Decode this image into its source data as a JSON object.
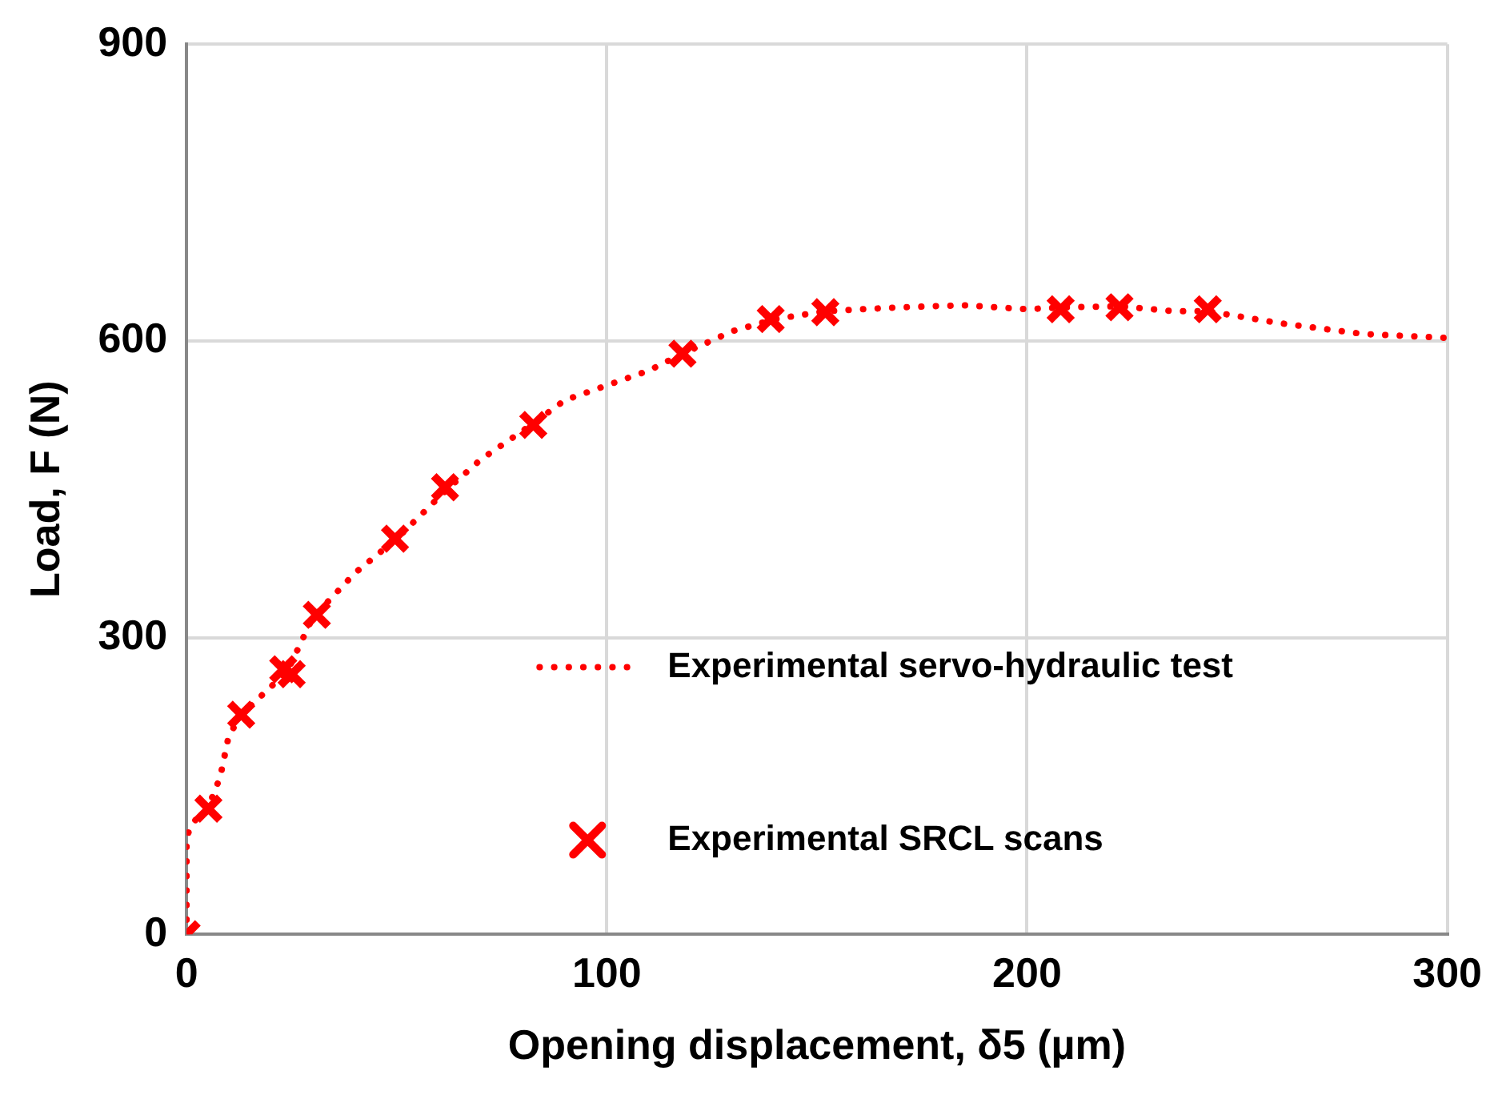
{
  "chart_data": {
    "type": "line",
    "xlabel": "Opening displacement, δ5 (µm)",
    "ylabel": "Load, F (N)",
    "xlim": [
      0,
      300
    ],
    "xticks": [
      0,
      100,
      200,
      300
    ],
    "ylim": [
      0,
      900
    ],
    "yticks": [
      0,
      300,
      600,
      900
    ],
    "grid": true,
    "legend": "right",
    "series": [
      {
        "name": "Experimental servo-hydraulic test",
        "type": "line",
        "line_style": "dotted",
        "marker": "none",
        "color": "#ff0000",
        "x": [
          0,
          0,
          1,
          3,
          5,
          8,
          10,
          13,
          20,
          24,
          30,
          40,
          50,
          62,
          70,
          82,
          90,
          100,
          110,
          118,
          130,
          140,
          152,
          170,
          185,
          200,
          209,
          222,
          235,
          243,
          260,
          280,
          300
        ],
        "values": [
          0,
          97,
          110,
          120,
          127,
          159,
          200,
          222,
          250,
          266,
          320,
          365,
          400,
          450,
          480,
          515,
          540,
          555,
          570,
          587,
          610,
          622,
          630,
          634,
          636,
          632,
          634,
          635,
          630,
          630,
          618,
          607,
          603
        ]
      },
      {
        "name": "Experimental SRCL scans",
        "type": "scatter",
        "marker": "cross",
        "color": "#ff0000",
        "x": [
          0,
          5.2,
          13,
          23,
          25,
          31,
          49.6,
          61.5,
          82.5,
          118,
          139,
          152,
          208,
          222,
          243
        ],
        "values": [
          0,
          127,
          222,
          268,
          263,
          323,
          400,
          452,
          515,
          587,
          622,
          629,
          632,
          634,
          632
        ]
      }
    ]
  }
}
